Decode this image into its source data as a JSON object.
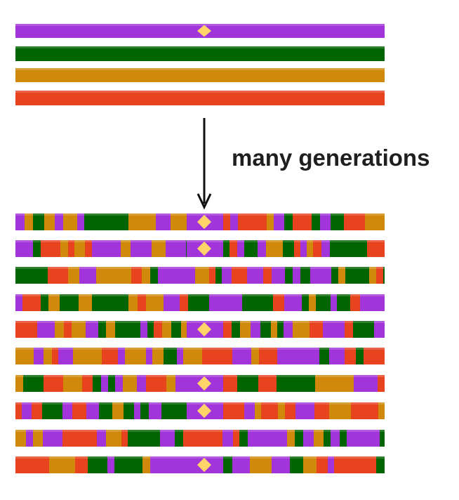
{
  "colors": {
    "purple": "#a235d9",
    "green": "#006400",
    "orange": "#d1890b",
    "red": "#e8431f",
    "marker": "#ffd56a",
    "arrow": "#111111"
  },
  "ancestral_chromosomes": [
    {
      "color": "purple",
      "has_marker": true
    },
    {
      "color": "green",
      "has_marker": false
    },
    {
      "color": "orange",
      "has_marker": false
    },
    {
      "color": "red",
      "has_marker": false
    }
  ],
  "arrow_label": "many generations",
  "descendant_chromosomes": [
    {
      "has_marker": true
    },
    {
      "has_marker": true
    },
    {
      "has_marker": false
    },
    {
      "has_marker": false
    },
    {
      "has_marker": true
    },
    {
      "has_marker": false
    },
    {
      "has_marker": true
    },
    {
      "has_marker": true
    },
    {
      "has_marker": false
    },
    {
      "has_marker": true
    }
  ]
}
